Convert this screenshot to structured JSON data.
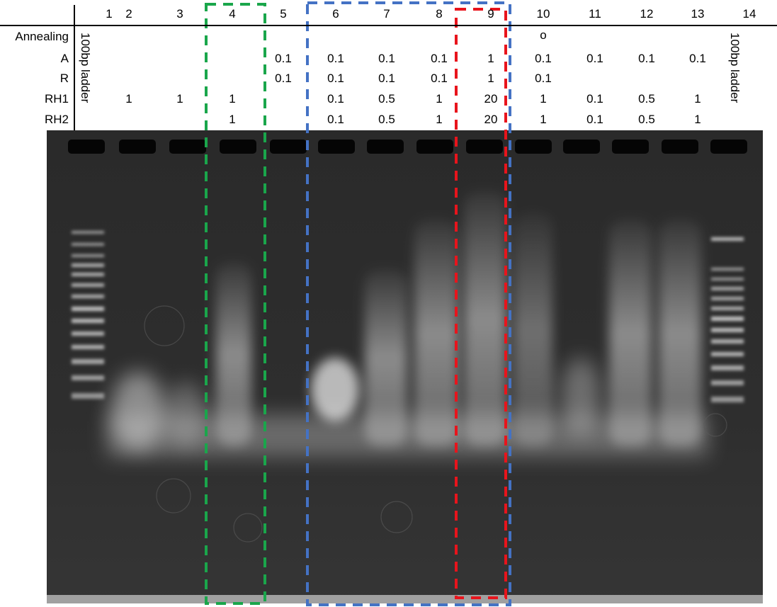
{
  "figure": {
    "lanes": [
      "1",
      "2",
      "3",
      "4",
      "5",
      "6",
      "7",
      "8",
      "9",
      "10",
      "11",
      "12",
      "13",
      "14"
    ],
    "row_labels": [
      "Annealing",
      "A",
      "R",
      "RH1",
      "RH2"
    ],
    "rows": {
      "annealing": [
        "",
        "",
        "",
        "",
        "",
        "",
        "",
        "",
        "",
        "o",
        "",
        "",
        "",
        ""
      ],
      "A": [
        "",
        "",
        "",
        "",
        "0.1",
        "0.1",
        "0.1",
        "0.1",
        "1",
        "0.1",
        "0.1",
        "0.1",
        "0.1",
        ""
      ],
      "R": [
        "",
        "",
        "",
        "",
        "0.1",
        "0.1",
        "0.1",
        "0.1",
        "1",
        "0.1",
        "",
        "",
        "",
        ""
      ],
      "RH1": [
        "",
        "1",
        "1",
        "1",
        "",
        "0.1",
        "0.5",
        "1",
        "20",
        "1",
        "0.1",
        "0.5",
        "1",
        ""
      ],
      "RH2": [
        "",
        "",
        "",
        "1",
        "",
        "0.1",
        "0.5",
        "1",
        "20",
        "1",
        "0.1",
        "0.5",
        "1",
        ""
      ]
    },
    "ladder_left_label": "100bp ladder",
    "ladder_right_label": "100bp ladder",
    "highlight_boxes": [
      {
        "name": "green-box",
        "color": "#1aa64b",
        "lanes": [
          "4"
        ]
      },
      {
        "name": "blue-box",
        "color": "#4472c4",
        "lanes": [
          "6",
          "7",
          "8",
          "9"
        ]
      },
      {
        "name": "red-box",
        "color": "#e8141c",
        "lanes": [
          "9"
        ]
      }
    ],
    "colors": {
      "gel_background": "#2b2b2b",
      "band": "#e6e6e6",
      "well": "#050505"
    }
  }
}
